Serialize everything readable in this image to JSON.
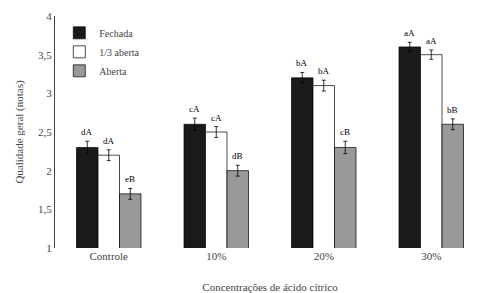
{
  "chart_data": {
    "type": "bar",
    "xlabel": "Concentrações de ácido cítrico",
    "ylabel": "Qualidade geral (notas)",
    "categories": [
      "Controle",
      "10%",
      "20%",
      "30%"
    ],
    "series": [
      {
        "name": "Fechada",
        "color": "#1a1a1a",
        "values": [
          2.3,
          2.6,
          3.2,
          3.6
        ],
        "errors": [
          0.08,
          0.08,
          0.07,
          0.06
        ],
        "annotations": [
          "dA",
          "cA",
          "bA",
          "aA"
        ]
      },
      {
        "name": "1/3 aberta",
        "color": "#ffffff",
        "values": [
          2.2,
          2.5,
          3.1,
          3.5
        ],
        "errors": [
          0.07,
          0.07,
          0.07,
          0.06
        ],
        "annotations": [
          "dA",
          "cA",
          "bA",
          "aA"
        ]
      },
      {
        "name": "Aberta",
        "color": "#999999",
        "values": [
          1.7,
          2.0,
          2.3,
          2.6
        ],
        "errors": [
          0.07,
          0.07,
          0.08,
          0.07
        ],
        "annotations": [
          "eB",
          "dB",
          "cB",
          "bB"
        ]
      }
    ],
    "ylim": [
      1.0,
      4.0
    ],
    "yticks": [
      1,
      {
        "value": 1.5,
        "label": "1,5"
      },
      2,
      {
        "value": 2.5,
        "label": "2,5"
      },
      3,
      {
        "value": 3.5,
        "label": "3,5"
      },
      4
    ],
    "grid": false,
    "legend": "upper left"
  }
}
